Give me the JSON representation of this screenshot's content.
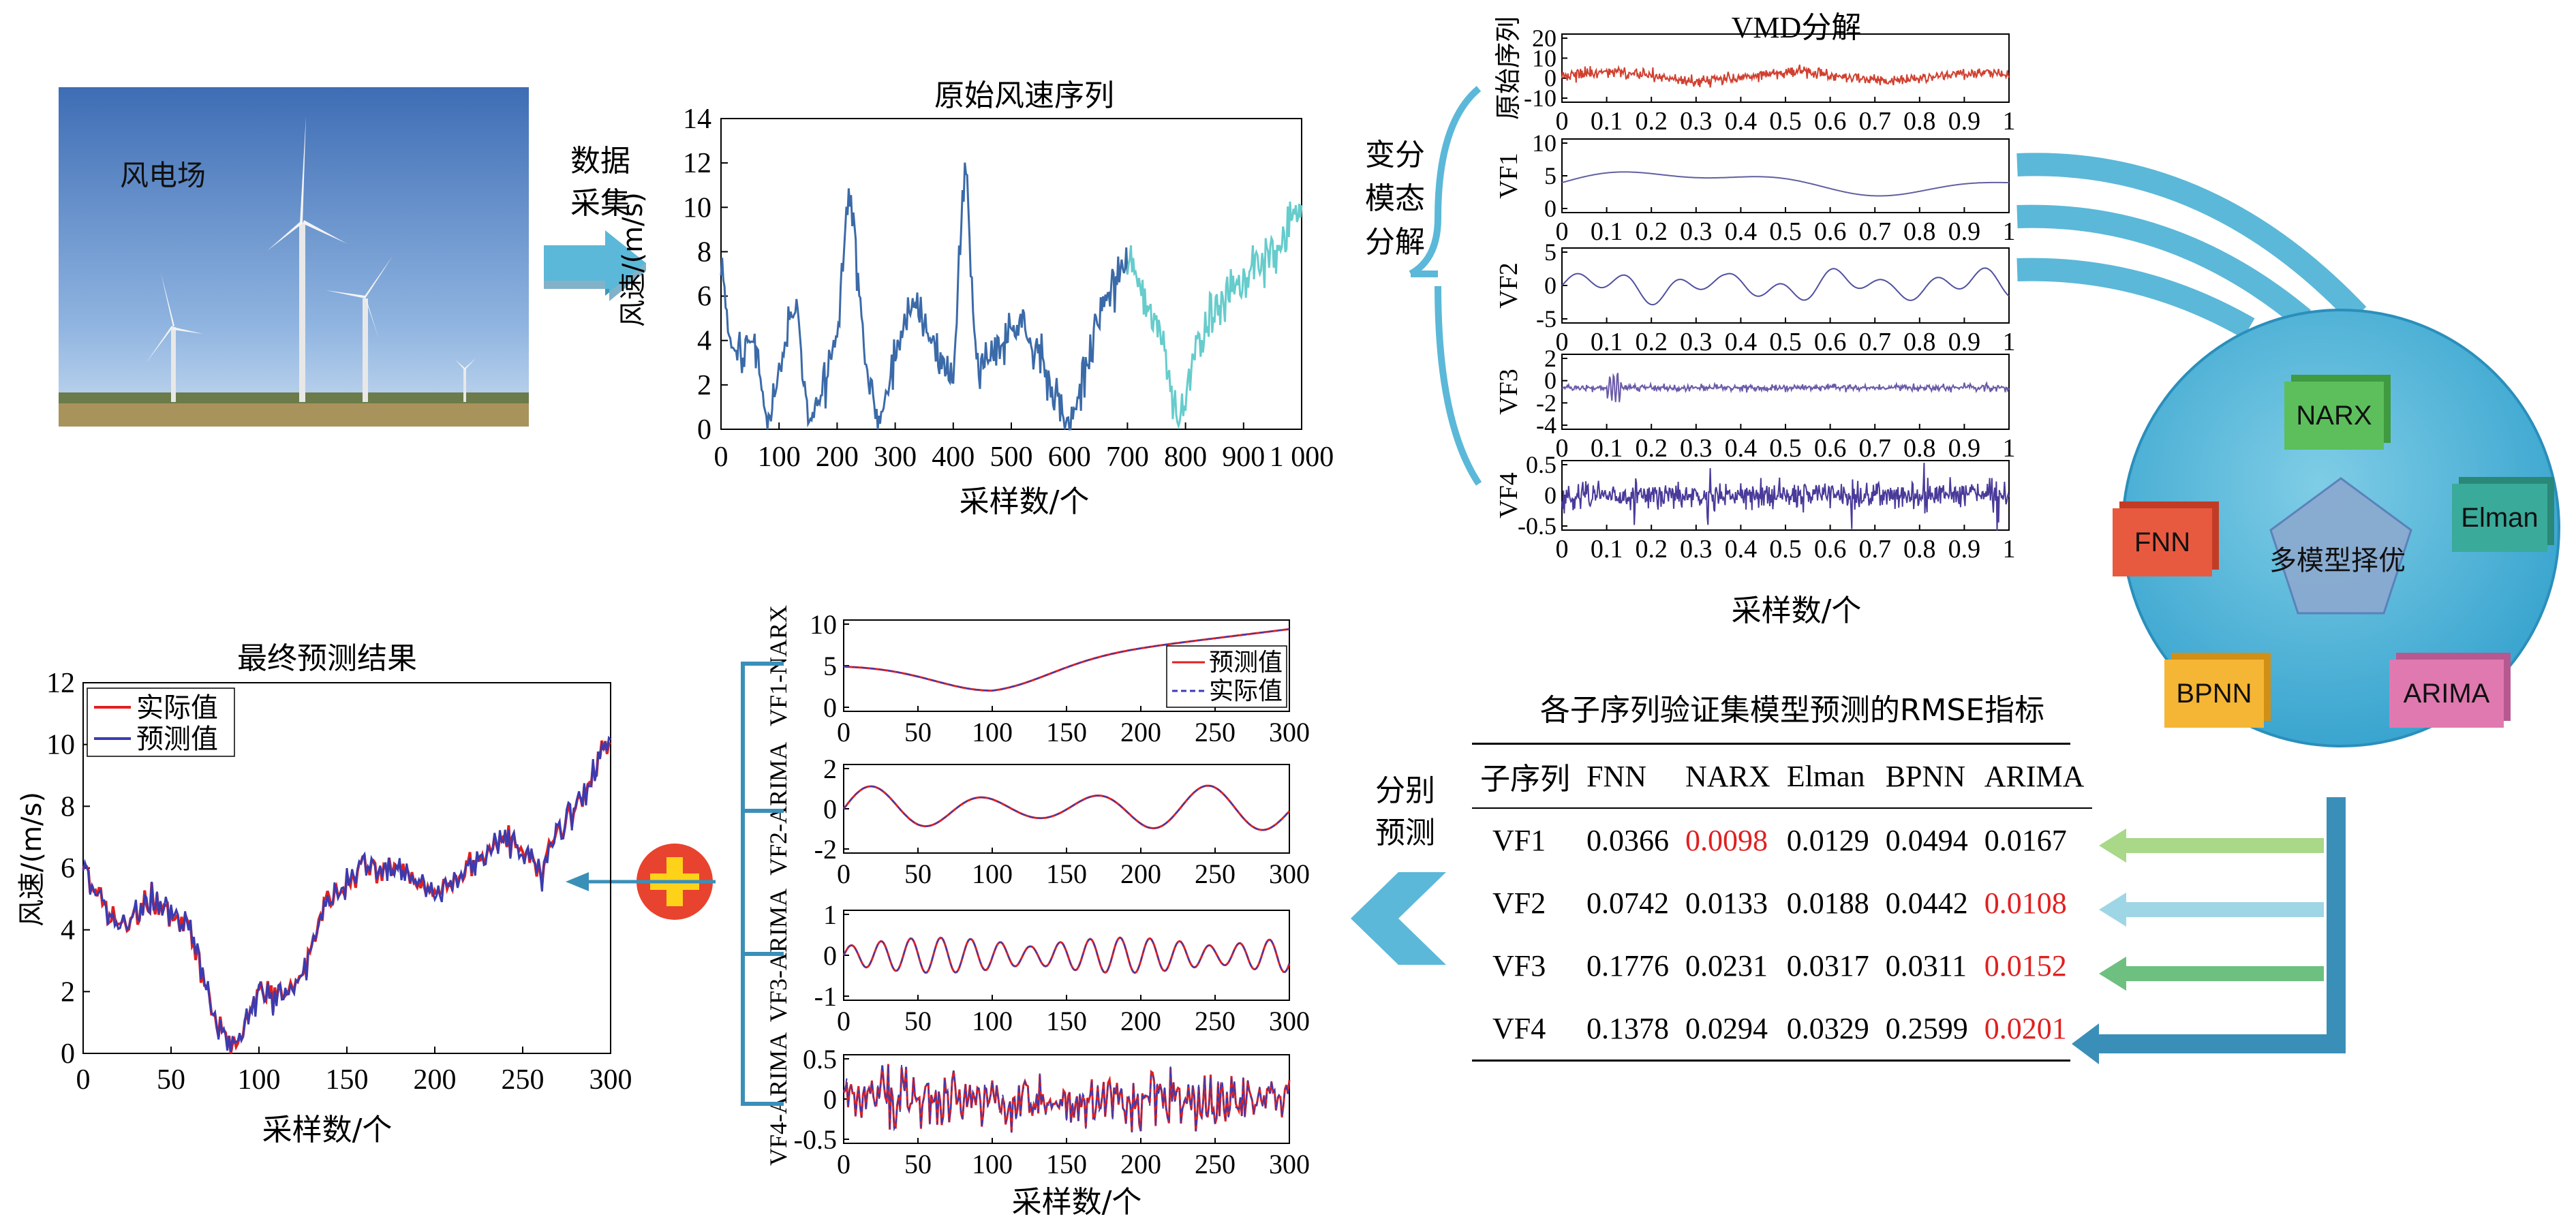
{
  "photo": {
    "label": "风电场"
  },
  "step1": {
    "line1": "数据",
    "line2": "采集"
  },
  "raw_chart": {
    "title": "原始风速序列",
    "ylabel": "风速/(m/s)",
    "xlabel": "采样数/个",
    "yticks": [
      "0",
      "2",
      "4",
      "6",
      "8",
      "10",
      "12",
      "14"
    ],
    "xticks": [
      "0",
      "100",
      "200",
      "300",
      "400",
      "500",
      "600",
      "700",
      "800",
      "900",
      "1 000"
    ]
  },
  "step2": {
    "line1": "变分",
    "line2": "模态",
    "line3": "分解"
  },
  "vmd": {
    "title": "VMD分解",
    "xlabel": "采样数/个",
    "xticks": [
      "0",
      "0.1",
      "0.2",
      "0.3",
      "0.4",
      "0.5",
      "0.6",
      "0.7",
      "0.8",
      "0.9",
      "1"
    ],
    "panels": [
      {
        "label": "原始序列",
        "yticks": [
          "20",
          "10",
          "0",
          "-10"
        ]
      },
      {
        "label": "VF1",
        "yticks": [
          "10",
          "5",
          "0"
        ]
      },
      {
        "label": "VF2",
        "yticks": [
          "5",
          "0",
          "-5"
        ]
      },
      {
        "label": "VF3",
        "yticks": [
          "2",
          "0",
          "-2",
          "-4"
        ]
      },
      {
        "label": "VF4",
        "yticks": [
          "0.5",
          "0",
          "-0.5"
        ]
      }
    ]
  },
  "model_circle": {
    "center": "多模型择优",
    "models": [
      {
        "name": "NARX",
        "color": "#5cbf5c"
      },
      {
        "name": "Elman",
        "color": "#3aaa9a"
      },
      {
        "name": "FNN",
        "color": "#e85a40"
      },
      {
        "name": "BPNN",
        "color": "#f5b535"
      },
      {
        "name": "ARIMA",
        "color": "#e079b0"
      }
    ]
  },
  "rmse_table": {
    "title": "各子序列验证集模型预测的RMSE指标",
    "headers": [
      "子序列",
      "FNN",
      "NARX",
      "Elman",
      "BPNN",
      "ARIMA"
    ],
    "rows": [
      {
        "name": "VF1",
        "values": [
          "0.0366",
          "0.0098",
          "0.0129",
          "0.0494",
          "0.0167"
        ],
        "best": 1
      },
      {
        "name": "VF2",
        "values": [
          "0.0742",
          "0.0133",
          "0.0188",
          "0.0442",
          "0.0108"
        ],
        "best": 4
      },
      {
        "name": "VF3",
        "values": [
          "0.1776",
          "0.0231",
          "0.0317",
          "0.0311",
          "0.0152"
        ],
        "best": 4
      },
      {
        "name": "VF4",
        "values": [
          "0.1378",
          "0.0294",
          "0.0329",
          "0.2599",
          "0.0201"
        ],
        "best": 4
      }
    ]
  },
  "step3": {
    "line1": "分别",
    "line2": "预测"
  },
  "sub_forecast": {
    "xlabel": "采样数/个",
    "xticks": [
      "0",
      "50",
      "100",
      "150",
      "200",
      "250",
      "300"
    ],
    "legend": {
      "pred": "预测值",
      "actual": "实际值"
    },
    "panels": [
      {
        "label": "VF1-NARX",
        "yticks": [
          "10",
          "5",
          "0"
        ]
      },
      {
        "label": "VF2-ARIMA",
        "yticks": [
          "2",
          "0",
          "-2"
        ]
      },
      {
        "label": "VF3-ARIMA",
        "yticks": [
          "1",
          "0",
          "-1"
        ]
      },
      {
        "label": "VF4-ARIMA",
        "yticks": [
          "0.5",
          "0",
          "-0.5"
        ]
      }
    ]
  },
  "final_chart": {
    "title": "最终预测结果",
    "ylabel": "风速/(m/s)",
    "xlabel": "采样数/个",
    "legend": {
      "actual": "实际值",
      "pred": "预测值"
    },
    "yticks": [
      "0",
      "2",
      "4",
      "6",
      "8",
      "10",
      "12"
    ],
    "xticks": [
      "0",
      "50",
      "100",
      "150",
      "200",
      "250",
      "300"
    ]
  },
  "colors": {
    "accent": "#5bb8d8",
    "arrow_dark": "#3a8fb8",
    "raw_line": "#3b6aa8",
    "raw_line2": "#66cccc",
    "red": "#e02020",
    "blue": "#3b3bb0"
  }
}
